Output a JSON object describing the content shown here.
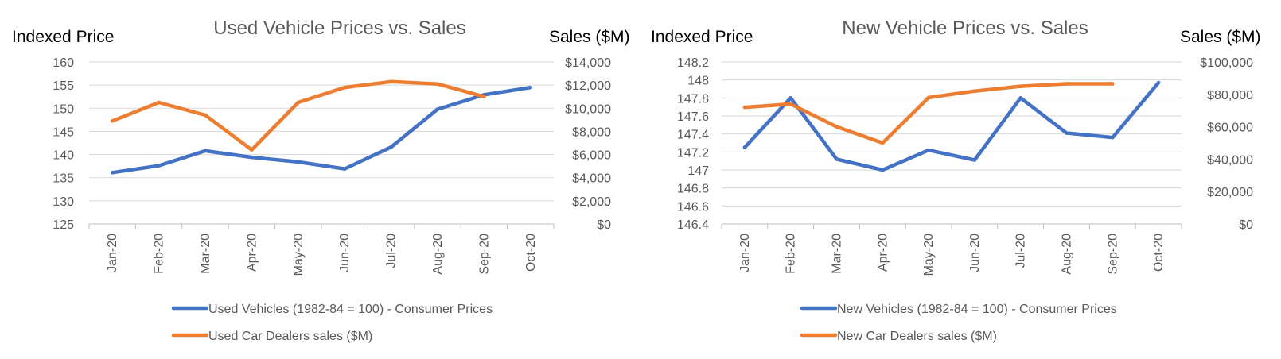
{
  "chart_data": [
    {
      "type": "line",
      "title": "Used Vehicle Prices vs. Sales",
      "ylabel": "Indexed Price",
      "y2label": "Sales ($M)",
      "categories": [
        "Jan-20",
        "Feb-20",
        "Mar-20",
        "Apr-20",
        "May-20",
        "Jun-20",
        "Jul-20",
        "Aug-20",
        "Sep-20",
        "Oct-20"
      ],
      "ylim": [
        125,
        160
      ],
      "yticks": [
        "160",
        "155",
        "150",
        "145",
        "140",
        "135",
        "130",
        "125"
      ],
      "y2lim": [
        0,
        14000
      ],
      "y2ticks": [
        "$14,000",
        "$12,000",
        "$10,000",
        "$8,000",
        "$6,000",
        "$4,000",
        "$2,000",
        "$0"
      ],
      "grid": true,
      "legend_position": "bottom",
      "series": [
        {
          "name": "Used Vehicles (1982-84 = 100) - Consumer Prices",
          "axis": "left",
          "color": "#4472C4",
          "values": [
            136.1,
            137.6,
            140.8,
            139.4,
            138.4,
            136.9,
            141.6,
            149.8,
            152.9,
            154.5
          ]
        },
        {
          "name": "Used Car Dealers sales ($M)",
          "axis": "right",
          "color": "#ED7D31",
          "values": [
            8900,
            10500,
            9400,
            6400,
            10500,
            11800,
            12300,
            12100,
            11000,
            null
          ]
        }
      ]
    },
    {
      "type": "line",
      "title": "New Vehicle Prices vs. Sales",
      "ylabel": "Indexed Price",
      "y2label": "Sales ($M)",
      "categories": [
        "Jan-20",
        "Feb-20",
        "Mar-20",
        "Apr-20",
        "May-20",
        "Jun-20",
        "Jul-20",
        "Aug-20",
        "Sep-20",
        "Oct-20"
      ],
      "ylim": [
        146.4,
        148.2
      ],
      "yticks": [
        "148.2",
        "148",
        "147.8",
        "147.6",
        "147.4",
        "147.2",
        "147",
        "146.8",
        "146.6",
        "146.4"
      ],
      "y2lim": [
        0,
        100000
      ],
      "y2ticks": [
        "$100,000",
        "$80,000",
        "$60,000",
        "$40,000",
        "$20,000",
        "$0"
      ],
      "grid": true,
      "legend_position": "bottom",
      "series": [
        {
          "name": "New Vehicles (1982-84 = 100) - Consumer Prices",
          "axis": "left",
          "color": "#4472C4",
          "values": [
            147.25,
            147.8,
            147.12,
            147.0,
            147.22,
            147.11,
            147.8,
            147.41,
            147.36,
            147.97
          ]
        },
        {
          "name": "New Car Dealers sales ($M)",
          "axis": "right",
          "color": "#ED7D31",
          "values": [
            72000,
            74000,
            60000,
            50000,
            78000,
            82000,
            85000,
            86500,
            86500,
            null
          ]
        }
      ]
    }
  ]
}
